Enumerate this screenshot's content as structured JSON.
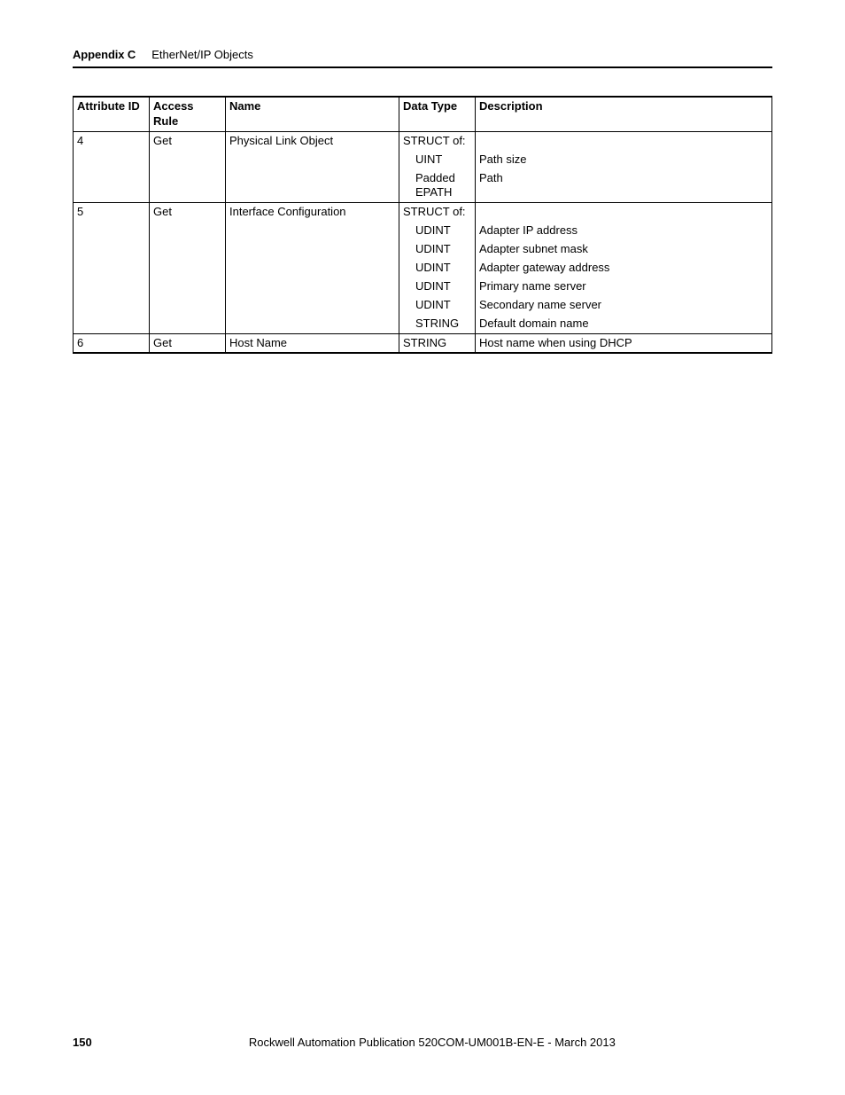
{
  "header": {
    "appendix_label": "Appendix C",
    "appendix_title": "EtherNet/IP Objects"
  },
  "table": {
    "columns": [
      "Attribute ID",
      "Access Rule",
      "Name",
      "Data Type",
      "Description"
    ],
    "rows": [
      {
        "attr_id": "4",
        "access": "Get",
        "name": "Physical Link Object",
        "lines": [
          {
            "dtype": "STRUCT of:",
            "desc": "",
            "indent": false
          },
          {
            "dtype": "UINT",
            "desc": "Path size",
            "indent": true
          },
          {
            "dtype": "Padded EPATH",
            "desc": "Path",
            "indent": true
          }
        ]
      },
      {
        "attr_id": "5",
        "access": "Get",
        "name": "Interface Configuration",
        "lines": [
          {
            "dtype": "STRUCT of:",
            "desc": "",
            "indent": false
          },
          {
            "dtype": "UDINT",
            "desc": "Adapter IP address",
            "indent": true
          },
          {
            "dtype": "UDINT",
            "desc": "Adapter subnet mask",
            "indent": true
          },
          {
            "dtype": "UDINT",
            "desc": "Adapter gateway address",
            "indent": true
          },
          {
            "dtype": "UDINT",
            "desc": "Primary name server",
            "indent": true
          },
          {
            "dtype": "UDINT",
            "desc": "Secondary name server",
            "indent": true
          },
          {
            "dtype": "STRING",
            "desc": "Default domain name",
            "indent": true
          }
        ]
      },
      {
        "attr_id": "6",
        "access": "Get",
        "name": "Host Name",
        "lines": [
          {
            "dtype": "STRING",
            "desc": "Host name when using DHCP",
            "indent": false
          }
        ]
      }
    ]
  },
  "footer": {
    "page_number": "150",
    "publication": "Rockwell Automation Publication 520COM-UM001B-EN-E - March 2013"
  }
}
